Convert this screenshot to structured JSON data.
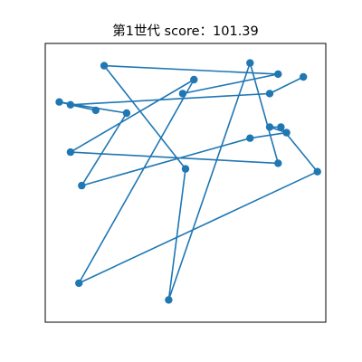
{
  "chart_data": {
    "type": "line",
    "title": "第1世代 score：101.39",
    "xlabel": "",
    "ylabel": "",
    "xlim": [
      0,
      1
    ],
    "ylim": [
      0,
      1
    ],
    "grid": false,
    "axis_ticks": false,
    "series": [
      {
        "color": "#1f77b4",
        "marker": "circle",
        "points": [
          [
            0.49,
            0.82
          ],
          [
            0.83,
            0.89
          ],
          [
            0.21,
            0.92
          ],
          [
            0.5,
            0.55
          ],
          [
            0.44,
            0.08
          ],
          [
            0.73,
            0.93
          ],
          [
            0.83,
            0.57
          ],
          [
            0.09,
            0.61
          ],
          [
            0.53,
            0.87
          ],
          [
            0.12,
            0.14
          ],
          [
            0.97,
            0.54
          ],
          [
            0.84,
            0.7
          ],
          [
            0.8,
            0.7
          ],
          [
            0.86,
            0.68
          ],
          [
            0.73,
            0.66
          ],
          [
            0.13,
            0.49
          ],
          [
            0.29,
            0.75
          ],
          [
            0.05,
            0.79
          ],
          [
            0.18,
            0.76
          ],
          [
            0.09,
            0.78
          ],
          [
            0.8,
            0.82
          ],
          [
            0.92,
            0.88
          ]
        ]
      }
    ]
  }
}
